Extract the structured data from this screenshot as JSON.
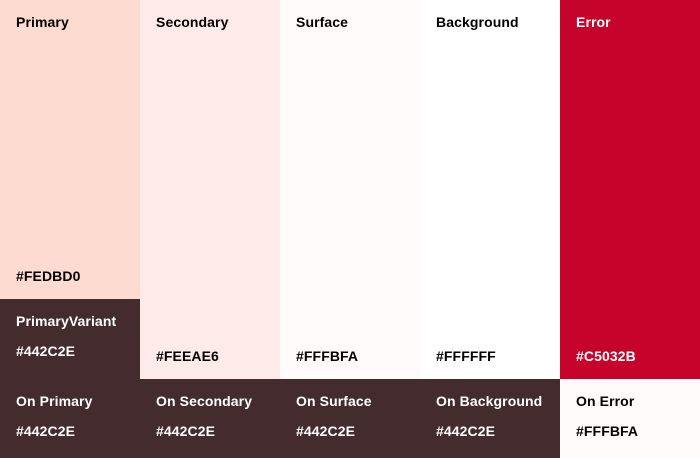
{
  "palette": {
    "columns": [
      {
        "id": "primary",
        "main": {
          "label": "Primary",
          "hex": "#FEDBD0",
          "bg": "#FEDBD0",
          "fg": "#000000"
        },
        "variant": {
          "label": "PrimaryVariant",
          "hex": "#442C2E",
          "bg": "#442C2E",
          "fg": "#FFFFFF"
        },
        "on": {
          "label": "On Primary",
          "hex": "#442C2E",
          "bg": "#442C2E",
          "fg": "#FFFFFF"
        }
      },
      {
        "id": "secondary",
        "main": {
          "label": "Secondary",
          "hex": "#FEEAE6",
          "bg": "#FEEAE6",
          "fg": "#000000"
        },
        "on": {
          "label": "On Secondary",
          "hex": "#442C2E",
          "bg": "#442C2E",
          "fg": "#FFFFFF"
        }
      },
      {
        "id": "surface",
        "main": {
          "label": "Surface",
          "hex": "#FFFBFA",
          "bg": "#FFFBFA",
          "fg": "#000000"
        },
        "on": {
          "label": "On Surface",
          "hex": "#442C2E",
          "bg": "#442C2E",
          "fg": "#FFFFFF"
        }
      },
      {
        "id": "background",
        "main": {
          "label": "Background",
          "hex": "#FFFFFF",
          "bg": "#FFFFFF",
          "fg": "#000000"
        },
        "on": {
          "label": "On Background",
          "hex": "#442C2E",
          "bg": "#442C2E",
          "fg": "#FFFFFF"
        }
      },
      {
        "id": "error",
        "main": {
          "label": "Error",
          "hex": "#C5032B",
          "bg": "#C5032B",
          "fg": "#FFFFFF"
        },
        "on": {
          "label": "On Error",
          "hex": "#FFFBFA",
          "bg": "#FFFBFA",
          "fg": "#000000"
        }
      }
    ]
  }
}
